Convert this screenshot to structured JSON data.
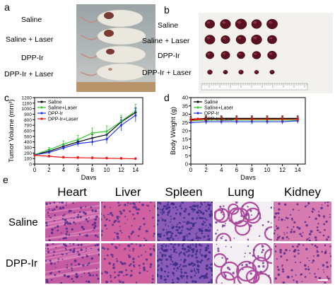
{
  "panels": {
    "a": {
      "letter": "a",
      "labels": [
        "Saline",
        "Saline + Laser",
        "DPP-Ir",
        "DPP-Ir + Laser"
      ]
    },
    "b": {
      "letter": "b",
      "labels": [
        "Saline",
        "Saline + Laser",
        "DPP-Ir",
        "DPP-Ir + Laser"
      ],
      "tumor_counts": [
        5,
        5,
        5,
        5
      ]
    },
    "c": {
      "letter": "c"
    },
    "d": {
      "letter": "d"
    },
    "e": {
      "letter": "e",
      "columns": [
        "Heart",
        "Liver",
        "Spleen",
        "Lung",
        "Kidney"
      ],
      "rows": [
        "Saline",
        "DPP-Ir"
      ]
    }
  },
  "chart_data": [
    {
      "type": "line",
      "panel": "c",
      "xlabel": "Days",
      "ylabel": "Tumor Volume (mm³)",
      "xlim": [
        0,
        15
      ],
      "ylim": [
        0,
        1200
      ],
      "xticks": [
        0,
        2,
        4,
        6,
        8,
        10,
        12,
        14
      ],
      "yticks": [
        0,
        100,
        200,
        300,
        400,
        500,
        600,
        700,
        800,
        900,
        1000,
        1100,
        1200
      ],
      "legend_position": "top-left",
      "x": [
        0,
        2,
        4,
        6,
        8,
        10,
        12,
        14
      ],
      "series": [
        {
          "name": "Saline",
          "color": "#000000",
          "values": [
            170,
            230,
            320,
            400,
            470,
            530,
            760,
            930
          ],
          "errors": [
            15,
            30,
            40,
            50,
            60,
            70,
            80,
            90
          ]
        },
        {
          "name": "Saline+Laser",
          "color": "#33cc33",
          "values": [
            170,
            260,
            360,
            440,
            560,
            590,
            770,
            960
          ],
          "errors": [
            15,
            40,
            60,
            80,
            90,
            100,
            110,
            120
          ]
        },
        {
          "name": "DPP-Ir",
          "color": "#2233ee",
          "values": [
            165,
            210,
            290,
            370,
            400,
            450,
            700,
            880
          ],
          "errors": [
            15,
            30,
            40,
            50,
            60,
            80,
            100,
            120
          ]
        },
        {
          "name": "DPP-Ir+Laser",
          "color": "#ee1111",
          "values": [
            160,
            140,
            120,
            115,
            110,
            105,
            100,
            95
          ],
          "errors": [
            10,
            20,
            20,
            20,
            20,
            20,
            20,
            20
          ]
        }
      ]
    },
    {
      "type": "line",
      "panel": "d",
      "xlabel": "Days",
      "ylabel": "Body Weight (g)",
      "xlim": [
        0,
        15
      ],
      "ylim": [
        0,
        40
      ],
      "xticks": [
        0,
        2,
        4,
        6,
        8,
        10,
        12,
        14
      ],
      "yticks": [
        0,
        5,
        10,
        15,
        20,
        25,
        30,
        35,
        40
      ],
      "legend_position": "top-left",
      "x": [
        0,
        2,
        4,
        6,
        8,
        10,
        12,
        14
      ],
      "series": [
        {
          "name": "Saline",
          "color": "#000000",
          "values": [
            27,
            27.5,
            27.5,
            27.5,
            27.5,
            27.5,
            27.5,
            27.5
          ],
          "errors": [
            1.5,
            1.5,
            1.5,
            1.5,
            1.5,
            1.5,
            1.5,
            1.5
          ]
        },
        {
          "name": "Saline+Laser",
          "color": "#33cc33",
          "values": [
            26,
            26.5,
            26.5,
            26.5,
            26.5,
            26.5,
            26.5,
            26.5
          ],
          "errors": [
            1.5,
            1.5,
            1.5,
            1.5,
            1.5,
            1.5,
            1.5,
            1.5
          ]
        },
        {
          "name": "DPP-Ir",
          "color": "#2233ee",
          "values": [
            25,
            25.5,
            25.5,
            25.5,
            25.5,
            25.5,
            25.5,
            26
          ],
          "errors": [
            1.5,
            1.5,
            1.5,
            1.5,
            1.5,
            1.5,
            1.5,
            1.5
          ]
        },
        {
          "name": "DPP-Ir+Laser",
          "color": "#ee1111",
          "values": [
            26.5,
            27,
            27,
            27,
            27,
            27,
            27,
            27
          ],
          "errors": [
            1.5,
            1.5,
            1.5,
            1.5,
            1.5,
            1.5,
            1.5,
            1.5
          ]
        }
      ]
    }
  ]
}
